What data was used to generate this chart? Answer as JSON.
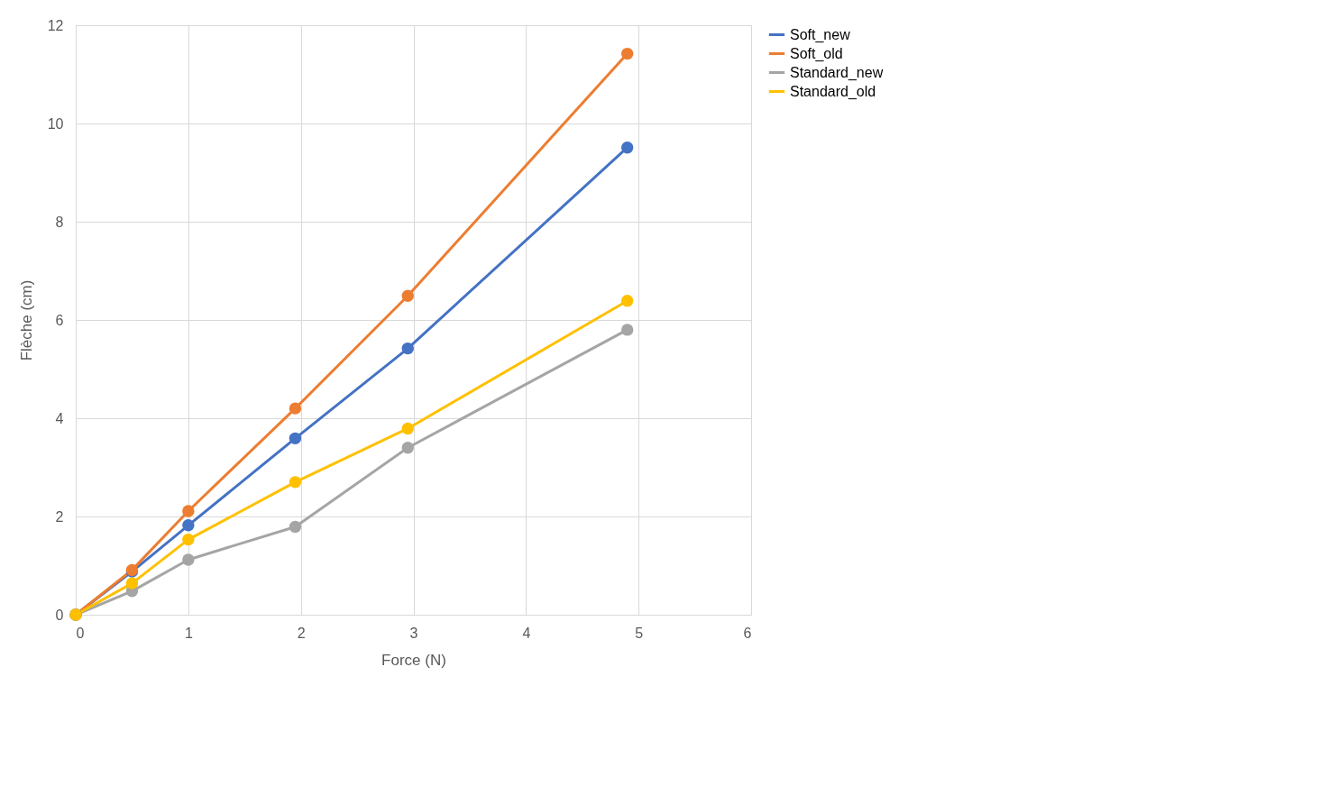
{
  "chart_data": {
    "type": "line",
    "xlabel": "Force (N)",
    "ylabel": "Flèche (cm)",
    "xlim": [
      0,
      6
    ],
    "xticks": [
      0,
      1,
      2,
      3,
      4,
      5,
      6
    ],
    "ylim": [
      0,
      12
    ],
    "yticks": [
      0,
      2,
      4,
      6,
      8,
      10,
      12
    ],
    "grid": true,
    "legend": "right",
    "marker": "circle",
    "line_style": "solid",
    "series": [
      {
        "name": "Soft_new",
        "color": "#4472c4",
        "x": [
          0,
          0.5,
          1,
          1.95,
          2.95,
          4.9
        ],
        "values": [
          0,
          0.88,
          1.82,
          3.59,
          5.42,
          9.51
        ]
      },
      {
        "name": "Soft_old",
        "color": "#ed7d31",
        "x": [
          0,
          0.5,
          1,
          1.95,
          2.95,
          4.9
        ],
        "values": [
          0,
          0.91,
          2.11,
          4.2,
          6.49,
          11.42
        ]
      },
      {
        "name": "Standard_new",
        "color": "#a5a5a5",
        "x": [
          0,
          0.5,
          1,
          1.95,
          2.95,
          4.9
        ],
        "values": [
          0,
          0.48,
          1.12,
          1.79,
          3.4,
          5.8
        ]
      },
      {
        "name": "Standard_old",
        "color": "#ffc000",
        "x": [
          0,
          0.5,
          1,
          1.95,
          2.95,
          4.9
        ],
        "values": [
          0,
          0.64,
          1.53,
          2.7,
          3.79,
          6.39
        ]
      }
    ]
  }
}
